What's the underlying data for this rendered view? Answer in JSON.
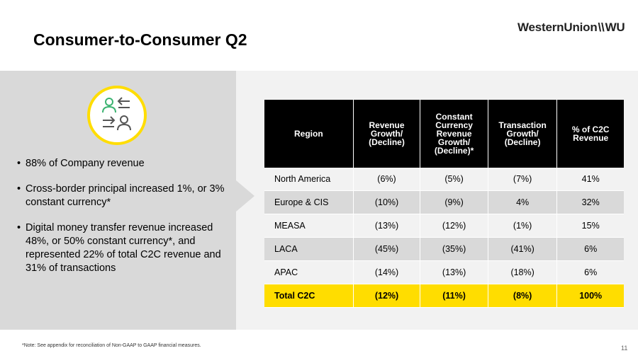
{
  "slide": {
    "title": "Consumer-to-Consumer Q2",
    "logo": {
      "part1": "WesternUnion",
      "separator": "\\\\",
      "part2": "WU"
    },
    "icon": "people-exchange-icon",
    "colors": {
      "accent": "#ffdd00",
      "header_bg": "#000000",
      "panel_bg": "#d9d9d9",
      "band_bg": "#f2f2f2",
      "row_dark": "#d9d9d9",
      "row_light": "#f2f2f2"
    },
    "bullets": [
      "88% of Company revenue",
      "Cross-border principal increased 1%, or 3% constant currency*",
      "Digital money transfer revenue increased 48%, or 50% constant currency*, and represented 22% of total C2C revenue and 31% of transactions"
    ],
    "table": {
      "headers": [
        "Region",
        "Revenue Growth/ (Decline)",
        "Constant Currency Revenue Growth/ (Decline)*",
        "Transaction Growth/ (Decline)",
        "% of C2C Revenue"
      ],
      "rows": [
        [
          "North America",
          "(6%)",
          "(5%)",
          "(7%)",
          "41%"
        ],
        [
          "Europe & CIS",
          "(10%)",
          "(9%)",
          "4%",
          "32%"
        ],
        [
          "MEASA",
          "(13%)",
          "(12%)",
          "(1%)",
          "15%"
        ],
        [
          "LACA",
          "(45%)",
          "(35%)",
          "(41%)",
          "6%"
        ],
        [
          "APAC",
          "(14%)",
          "(13%)",
          "(18%)",
          "6%"
        ]
      ],
      "total": [
        "Total C2C",
        "(12%)",
        "(11%)",
        "(8%)",
        "100%"
      ]
    },
    "footnote": "*Note: See appendix for reconciliation of Non-GAAP to GAAP financial measures.",
    "page_number": "11"
  }
}
